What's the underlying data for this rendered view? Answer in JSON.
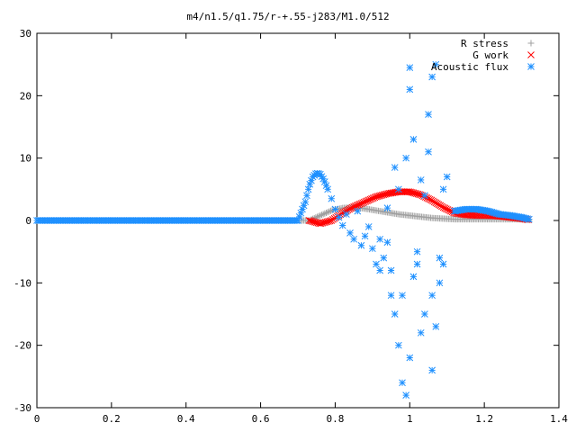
{
  "chart_data": {
    "type": "scatter",
    "title": "m4/n1.5/q1.75/r-+.55-j283/M1.0/512",
    "xlabel": "",
    "ylabel": "",
    "xlim": [
      0,
      1.4
    ],
    "ylim": [
      -30,
      30
    ],
    "xticks": [
      "0",
      "0.2",
      "0.4",
      "0.6",
      "0.8",
      "1",
      "1.2",
      "1.4"
    ],
    "yticks": [
      "30",
      "20",
      "10",
      "0",
      "-10",
      "-20",
      "-30"
    ],
    "grid": false,
    "legend_position": "top-right",
    "series": [
      {
        "name": "R stress",
        "marker": "+",
        "color": "#a0a0a0",
        "x": [
          0.0,
          0.1,
          0.2,
          0.3,
          0.4,
          0.5,
          0.6,
          0.7,
          0.73,
          0.76,
          0.79,
          0.82,
          0.85,
          0.88,
          0.91,
          0.94,
          0.97,
          1.0,
          1.03,
          1.06,
          1.09,
          1.12,
          1.15,
          1.18,
          1.21,
          1.24,
          1.27,
          1.3,
          1.32
        ],
        "y": [
          0,
          0,
          0,
          0,
          0,
          0,
          0,
          0,
          0,
          0.8,
          1.6,
          2.0,
          2.1,
          1.9,
          1.6,
          1.3,
          1.0,
          0.8,
          0.6,
          0.4,
          0.3,
          0.2,
          0.2,
          0.2,
          0.2,
          0.2,
          0.2,
          0.2,
          0.1
        ]
      },
      {
        "name": "G work",
        "marker": "x",
        "color": "#ff0000",
        "x": [
          0.73,
          0.76,
          0.79,
          0.82,
          0.85,
          0.88,
          0.91,
          0.94,
          0.97,
          1.0,
          1.03,
          1.06,
          1.09,
          1.12,
          1.15,
          1.18,
          1.21,
          1.24,
          1.27,
          1.3,
          1.32
        ],
        "y": [
          0,
          -0.5,
          0,
          1.2,
          2.2,
          3.0,
          3.8,
          4.3,
          4.6,
          4.6,
          4.1,
          3.2,
          2.1,
          1.2,
          0.9,
          0.8,
          0.8,
          0.7,
          0.5,
          0.3,
          0.1
        ]
      },
      {
        "name": "Acoustic flux",
        "marker": "*",
        "color": "#1e90ff",
        "x": [
          0.0,
          0.1,
          0.2,
          0.3,
          0.4,
          0.5,
          0.6,
          0.7,
          0.72,
          0.73,
          0.74,
          0.75,
          0.76,
          0.77,
          0.78,
          0.79,
          0.8,
          0.81,
          0.82,
          0.83,
          0.84,
          0.85,
          0.86,
          0.87,
          0.88,
          0.89,
          0.9,
          0.91,
          0.92,
          0.93,
          0.94,
          0.95,
          0.96,
          0.97,
          0.98,
          0.99,
          1.0,
          1.0,
          1.01,
          1.02,
          1.03,
          1.04,
          1.05,
          1.06,
          1.07,
          1.08,
          1.09,
          1.1,
          1.12,
          1.15,
          1.18,
          1.21,
          1.24,
          1.27,
          1.3,
          1.32,
          0.96,
          0.97,
          0.98,
          1.0,
          1.03,
          1.06,
          1.07,
          0.99,
          1.02,
          1.05,
          0.95,
          0.92,
          0.94,
          1.01,
          1.04,
          1.06,
          1.08,
          1.09
        ],
        "y": [
          0,
          0,
          0,
          0,
          0,
          0,
          0,
          0,
          3.0,
          5.5,
          7.0,
          7.6,
          7.4,
          6.5,
          5.0,
          3.5,
          1.8,
          0.5,
          -0.8,
          1.0,
          -2.0,
          -3.0,
          1.5,
          -4.0,
          -2.5,
          -1.0,
          -4.5,
          -7.0,
          -8.0,
          -6.0,
          -3.5,
          -12.0,
          8.5,
          5.0,
          -26.0,
          -28.0,
          21.0,
          24.5,
          13.0,
          -7.0,
          6.5,
          4.0,
          11.0,
          23.0,
          25.0,
          -10.0,
          -7.0,
          7.0,
          2.5,
          1.8,
          1.8,
          1.5,
          1.0,
          0.8,
          0.5,
          0.2,
          -15.0,
          -20.0,
          -12.0,
          -22.0,
          -18.0,
          -24.0,
          -17.0,
          10.0,
          -5.0,
          17.0,
          -8.0,
          -3.0,
          2.0,
          -9.0,
          -15.0,
          -12.0,
          -6.0,
          5.0
        ]
      }
    ]
  }
}
